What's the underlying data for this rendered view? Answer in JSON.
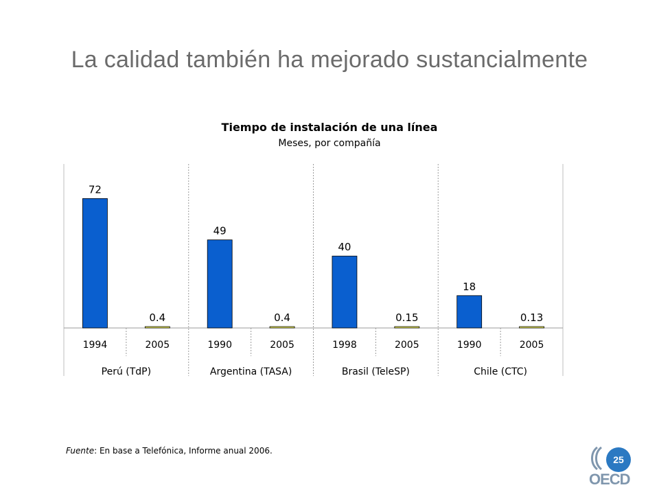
{
  "slide": {
    "title": "La calidad también ha mejorado sustancialmente",
    "page_number": "25",
    "source_label": "Fuente",
    "source_text": ": En base a Telefónica, Informe anual 2006.",
    "logo_text": "OECD"
  },
  "chart_data": {
    "type": "bar",
    "title": "Tiempo de instalación de una línea",
    "subtitle": "Meses, por compañía",
    "groups": [
      {
        "name": "Perú (TdP)",
        "bars": [
          {
            "year": "1994",
            "value": 72,
            "label": "72"
          },
          {
            "year": "2005",
            "value": 0.4,
            "label": "0.4"
          }
        ]
      },
      {
        "name": "Argentina (TASA)",
        "bars": [
          {
            "year": "1990",
            "value": 49,
            "label": "49"
          },
          {
            "year": "2005",
            "value": 0.4,
            "label": "0.4"
          }
        ]
      },
      {
        "name": "Brasil (TeleSP)",
        "bars": [
          {
            "year": "1998",
            "value": 40,
            "label": "40"
          },
          {
            "year": "2005",
            "value": 0.15,
            "label": "0.15"
          }
        ]
      },
      {
        "name": "Chile (CTC)",
        "bars": [
          {
            "year": "1990",
            "value": 18,
            "label": "18"
          },
          {
            "year": "2005",
            "value": 0.13,
            "label": "0.13"
          }
        ]
      }
    ],
    "ylim": [
      0,
      80
    ],
    "grid": false,
    "colors": {
      "early": "#0a5fcf",
      "recent": "#ffff66"
    }
  }
}
